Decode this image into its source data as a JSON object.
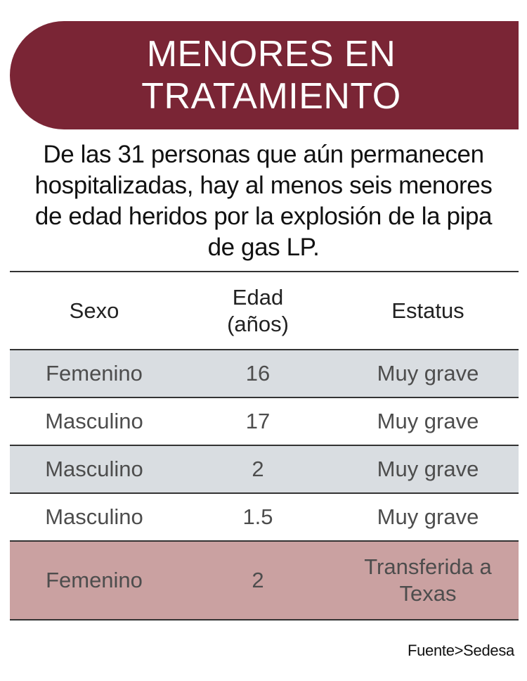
{
  "title": {
    "line1": "MENORES EN",
    "line2": "TRATAMIENTO"
  },
  "intro": {
    "line1": "De las 31 personas que aún permanecen",
    "line2": "hospitalizadas, hay al menos seis menores",
    "line3": "de edad heridos por la explosión de la pipa",
    "line4": "de gas LP."
  },
  "table": {
    "headers": {
      "sexo": "Sexo",
      "edad_line1": "Edad",
      "edad_line2": "(años)",
      "estatus": "Estatus"
    },
    "rows": [
      {
        "sexo": "Femenino",
        "edad": "16",
        "estatus": "Muy grave"
      },
      {
        "sexo": "Masculino",
        "edad": "17",
        "estatus": "Muy grave"
      },
      {
        "sexo": "Masculino",
        "edad": "2",
        "estatus": "Muy grave"
      },
      {
        "sexo": "Masculino",
        "edad": "1.5",
        "estatus": "Muy grave"
      },
      {
        "sexo": "Femenino",
        "edad": "2",
        "estatus_line1": "Transferida a",
        "estatus_line2": "Texas"
      }
    ]
  },
  "source": "Fuente>Sedesa",
  "colors": {
    "banner": "#7a2535",
    "row_grey": "#d9dde1",
    "row_rose": "#caa1a1"
  }
}
